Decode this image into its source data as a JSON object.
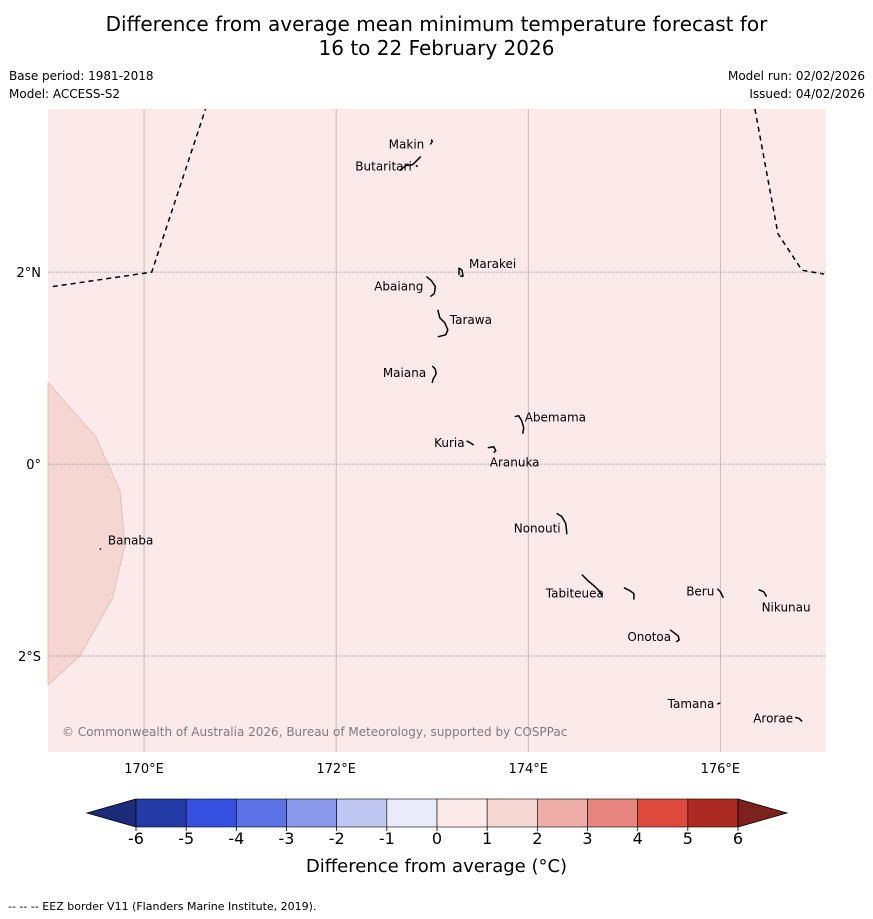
{
  "title": {
    "line1": "Difference from average mean minimum temperature forecast for",
    "line2": "16 to 22 February 2026"
  },
  "meta": {
    "base_period": "Base period: 1981-2018",
    "model": "Model: ACCESS-S2",
    "model_run": "Model run: 02/02/2026",
    "issued": "Issued: 04/02/2026"
  },
  "map": {
    "background_color": "#fbeae9",
    "west_region_color": "#f5d6d2",
    "lon_range": [
      169,
      177.1
    ],
    "lat_range": [
      -3,
      3.7
    ],
    "lon_ticks": [
      {
        "value": 170,
        "label": "170°E"
      },
      {
        "value": 172,
        "label": "172°E"
      },
      {
        "value": 174,
        "label": "174°E"
      },
      {
        "value": 176,
        "label": "176°E"
      }
    ],
    "lat_ticks": [
      {
        "value": 2,
        "label": "2°N"
      },
      {
        "value": 0,
        "label": "0°"
      },
      {
        "value": -2,
        "label": "2°S"
      }
    ],
    "copyright": "© Commonwealth of Australia 2026, Bureau of Meteorology, supported by COSPPac",
    "islands": [
      {
        "name": "Makin",
        "lon": 172.98,
        "lat": 3.33,
        "label_side": "left"
      },
      {
        "name": "Butaritari",
        "lon": 172.85,
        "lat": 3.1,
        "label_side": "left"
      },
      {
        "name": "Marakei",
        "lon": 173.3,
        "lat": 2.0,
        "label_side": "right"
      },
      {
        "name": "Abaiang",
        "lon": 172.97,
        "lat": 1.85,
        "label_side": "left"
      },
      {
        "name": "Tarawa",
        "lon": 173.1,
        "lat": 1.42,
        "label_side": "right"
      },
      {
        "name": "Maiana",
        "lon": 173.0,
        "lat": 0.95,
        "label_side": "left"
      },
      {
        "name": "Abemama",
        "lon": 173.88,
        "lat": 0.4,
        "label_side": "right"
      },
      {
        "name": "Kuria",
        "lon": 173.4,
        "lat": 0.22,
        "label_side": "left"
      },
      {
        "name": "Aranuka",
        "lon": 173.62,
        "lat": 0.16,
        "label_side": "below"
      },
      {
        "name": "Banaba",
        "lon": 169.54,
        "lat": -0.88,
        "label_side": "right"
      },
      {
        "name": "Nonouti",
        "lon": 174.4,
        "lat": -0.67,
        "label_side": "left"
      },
      {
        "name": "Beru",
        "lon": 176.0,
        "lat": -1.33,
        "label_side": "left"
      },
      {
        "name": "Nikunau",
        "lon": 176.45,
        "lat": -1.35,
        "label_side": "below"
      },
      {
        "name": "Tabiteuea",
        "lon": 174.85,
        "lat": -1.35,
        "label_side": "left"
      },
      {
        "name": "Onotoa",
        "lon": 175.55,
        "lat": -1.8,
        "label_side": "left"
      },
      {
        "name": "Tamana",
        "lon": 176.0,
        "lat": -2.5,
        "label_side": "left"
      },
      {
        "name": "Arorae",
        "lon": 176.82,
        "lat": -2.65,
        "label_side": "left"
      }
    ]
  },
  "colorbar": {
    "ticks": [
      "-6",
      "-5",
      "-4",
      "-3",
      "-2",
      "-1",
      "0",
      "1",
      "2",
      "3",
      "4",
      "5",
      "6"
    ],
    "colors": [
      "#233ba6",
      "#3450e0",
      "#5a72e6",
      "#8a99ec",
      "#c1c7f3",
      "#e9ebfa",
      "#fbeae9",
      "#f5d6d2",
      "#edaca6",
      "#e7847d",
      "#dd4a3d",
      "#ac2a22"
    ],
    "under_color": "#1d2c7a",
    "over_color": "#7a221b",
    "label": "Difference from average (°C)"
  },
  "footnote": "-- -- -- EEZ border V11 (Flanders Marine Institute, 2019)."
}
